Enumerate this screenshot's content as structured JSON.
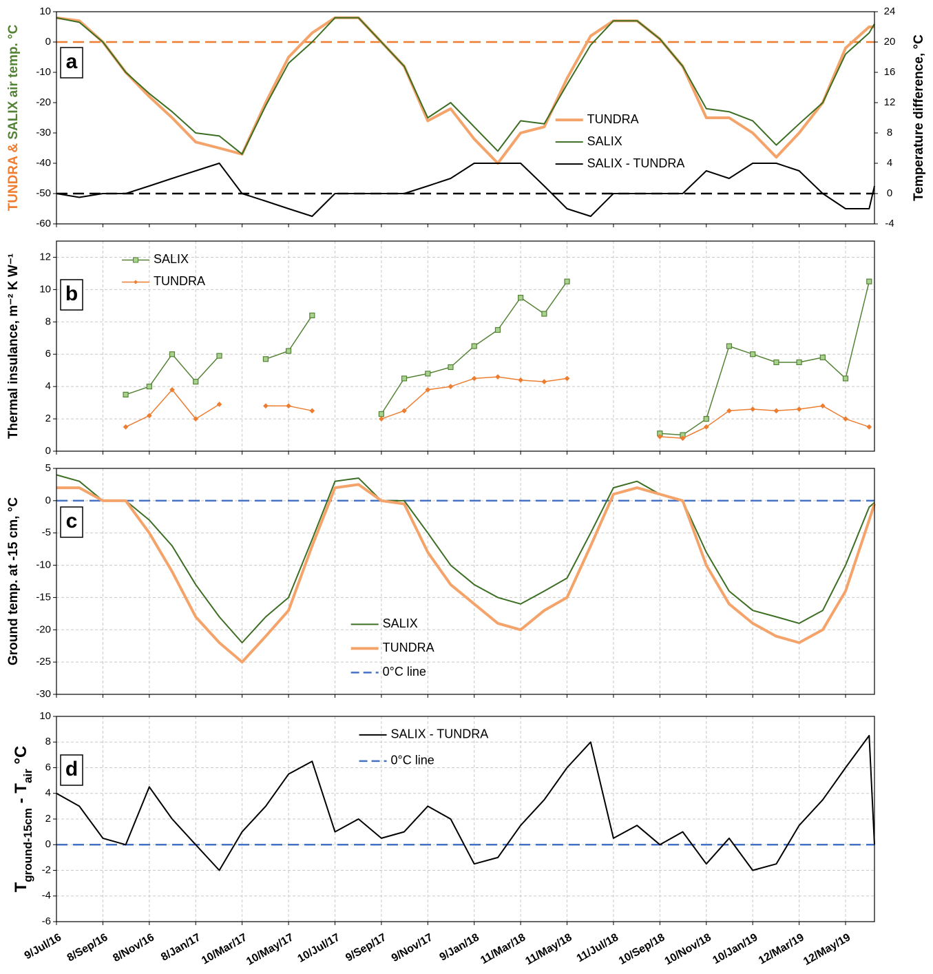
{
  "chart_data": [
    {
      "type": "line",
      "panel_label": "a",
      "ylabel_parts": [
        {
          "text": "TUNDRA &",
          "color": "#ed7d31"
        },
        {
          "text": " SALIX air temp. °C",
          "color": "#548235"
        }
      ],
      "y2label": "Temperature difference,  °C",
      "x": [
        "2016-07-09",
        "2016-08-08",
        "2016-09-08",
        "2016-10-08",
        "2016-11-08",
        "2016-12-08",
        "2017-01-08",
        "2017-02-08",
        "2017-03-10",
        "2017-04-10",
        "2017-05-10",
        "2017-06-10",
        "2017-07-10",
        "2017-08-10",
        "2017-09-09",
        "2017-10-09",
        "2017-11-09",
        "2017-12-09",
        "2018-01-09",
        "2018-02-09",
        "2018-03-11",
        "2018-04-11",
        "2018-05-11",
        "2018-06-11",
        "2018-07-11",
        "2018-08-11",
        "2018-09-10",
        "2018-10-10",
        "2018-11-10",
        "2018-12-10",
        "2019-01-10",
        "2019-02-10",
        "2019-03-12",
        "2019-04-12",
        "2019-05-12",
        "2019-06-12",
        "2019-06-19"
      ],
      "xlim": [
        "2016-07-09",
        "2019-06-19"
      ],
      "ylim": [
        -60,
        10
      ],
      "yticks": [
        -60,
        -50,
        -40,
        -30,
        -20,
        -10,
        0,
        10
      ],
      "y2lim": [
        -4,
        24
      ],
      "y2ticks": [
        -4,
        0,
        4,
        8,
        12,
        16,
        20,
        24
      ],
      "grid": false,
      "legend": "center right",
      "reference_lines": [
        {
          "value": 0,
          "color": "#ed7d31"
        },
        {
          "value": 0,
          "axis": "y2",
          "color": "#000000"
        }
      ],
      "series": [
        {
          "name": "TUNDRA",
          "color": "#f4a46a",
          "linewidth": 4,
          "values": [
            8,
            7,
            0,
            -10,
            -18,
            -25,
            -33,
            -35,
            -37,
            -20,
            -5,
            3,
            8,
            8,
            0,
            -8,
            -26,
            -22,
            -32,
            -40,
            -30,
            -28,
            -12,
            2,
            7,
            7,
            1,
            -8,
            -25,
            -25,
            -30,
            -38,
            -30,
            -20,
            -2,
            5,
            5
          ]
        },
        {
          "name": "SALIX",
          "color": "#3b6e22",
          "linewidth": 2,
          "values": [
            8,
            6.5,
            0,
            -10,
            -17,
            -23,
            -30,
            -31,
            -37,
            -21,
            -7,
            0,
            8,
            8,
            0,
            -8,
            -25,
            -20,
            -28,
            -36,
            -26,
            -27,
            -14,
            -1,
            7,
            7,
            1,
            -8,
            -22,
            -23,
            -26,
            -34,
            -27,
            -20,
            -4,
            3,
            6
          ]
        },
        {
          "name": "SALIX - TUNDRA",
          "color": "#000000",
          "linewidth": 2,
          "axis": "y2",
          "values": [
            0,
            -0.5,
            0,
            0,
            1,
            2,
            3,
            4,
            0,
            -1,
            -2,
            -3,
            0,
            0,
            0,
            0,
            1,
            2,
            4,
            4,
            4,
            1,
            -2,
            -3,
            0,
            0,
            0,
            0,
            3,
            2,
            4,
            4,
            3,
            0,
            -2,
            -2,
            1
          ]
        }
      ]
    },
    {
      "type": "line",
      "panel_label": "b",
      "ylabel": "Thermal insulance, m⁻² K W⁻¹",
      "x": [
        "2016-07-09",
        "2016-08-08",
        "2016-09-08",
        "2016-10-08",
        "2016-11-08",
        "2016-12-08",
        "2017-01-08",
        "2017-02-08",
        "2017-03-10",
        "2017-04-10",
        "2017-05-10",
        "2017-06-10",
        "2017-07-10",
        "2017-08-10",
        "2017-09-09",
        "2017-10-09",
        "2017-11-09",
        "2017-12-09",
        "2018-01-09",
        "2018-02-09",
        "2018-03-11",
        "2018-04-11",
        "2018-05-11",
        "2018-06-11",
        "2018-07-11",
        "2018-08-11",
        "2018-09-10",
        "2018-10-10",
        "2018-11-10",
        "2018-12-10",
        "2019-01-10",
        "2019-02-10",
        "2019-03-12",
        "2019-04-12",
        "2019-05-12",
        "2019-06-12",
        "2019-06-19"
      ],
      "xlim": [
        "2016-07-09",
        "2019-06-19"
      ],
      "ylim": [
        0,
        13
      ],
      "yticks": [
        0,
        2,
        4,
        6,
        8,
        10,
        12
      ],
      "grid": true,
      "legend": "upper left",
      "series": [
        {
          "name": "SALIX",
          "color": "#548235",
          "linewidth": 1.5,
          "marker": "square",
          "values": [
            null,
            null,
            null,
            3.5,
            4,
            6,
            4.3,
            5.9,
            null,
            5.7,
            6.2,
            8.4,
            null,
            null,
            2.3,
            4.5,
            4.8,
            5.2,
            6.5,
            7.5,
            9.5,
            8.5,
            10.5,
            null,
            null,
            null,
            1.1,
            1.0,
            2.0,
            6.5,
            6.0,
            5.5,
            5.5,
            5.8,
            4.5,
            10.5,
            null
          ]
        },
        {
          "name": "TUNDRA",
          "color": "#ed7d31",
          "linewidth": 1.5,
          "marker": "diamond",
          "values": [
            null,
            null,
            null,
            1.5,
            2.2,
            3.8,
            2.0,
            2.9,
            null,
            2.8,
            2.8,
            2.5,
            null,
            null,
            2.0,
            2.5,
            3.8,
            4.0,
            4.5,
            4.6,
            4.4,
            4.3,
            4.5,
            null,
            null,
            null,
            0.9,
            0.8,
            1.5,
            2.5,
            2.6,
            2.5,
            2.6,
            2.8,
            2.0,
            1.5,
            null
          ]
        }
      ]
    },
    {
      "type": "line",
      "panel_label": "c",
      "ylabel": "Ground temp. at -15 cm,  °C",
      "x": [
        "2016-07-09",
        "2016-08-08",
        "2016-09-08",
        "2016-10-08",
        "2016-11-08",
        "2016-12-08",
        "2017-01-08",
        "2017-02-08",
        "2017-03-10",
        "2017-04-10",
        "2017-05-10",
        "2017-06-10",
        "2017-07-10",
        "2017-08-10",
        "2017-09-09",
        "2017-10-09",
        "2017-11-09",
        "2017-12-09",
        "2018-01-09",
        "2018-02-09",
        "2018-03-11",
        "2018-04-11",
        "2018-05-11",
        "2018-06-11",
        "2018-07-11",
        "2018-08-11",
        "2018-09-10",
        "2018-10-10",
        "2018-11-10",
        "2018-12-10",
        "2019-01-10",
        "2019-02-10",
        "2019-03-12",
        "2019-04-12",
        "2019-05-12",
        "2019-06-12",
        "2019-06-19"
      ],
      "xlim": [
        "2016-07-09",
        "2019-06-19"
      ],
      "ylim": [
        -30,
        5
      ],
      "yticks": [
        -30,
        -25,
        -20,
        -15,
        -10,
        -5,
        0,
        5
      ],
      "grid": true,
      "legend": "lower center",
      "series": [
        {
          "name": "SALIX",
          "color": "#3b6e22",
          "linewidth": 2,
          "values": [
            4,
            3,
            0,
            0,
            -3,
            -7,
            -13,
            -18,
            -22,
            -18,
            -15,
            -6,
            3,
            3.5,
            0,
            0,
            -5,
            -10,
            -13,
            -15,
            -16,
            -14,
            -12,
            -5,
            2,
            3,
            1,
            0,
            -8,
            -14,
            -17,
            -18,
            -19,
            -17,
            -10,
            -1,
            -0.3
          ]
        },
        {
          "name": "TUNDRA",
          "color": "#f4a46a",
          "linewidth": 4,
          "values": [
            2,
            2,
            0,
            0,
            -5,
            -11,
            -18,
            -22,
            -25,
            -21,
            -17,
            -7,
            2,
            2.5,
            0,
            -0.5,
            -8,
            -13,
            -16,
            -19,
            -20,
            -17,
            -15,
            -7,
            1,
            2,
            1,
            0,
            -10,
            -16,
            -19,
            -21,
            -22,
            -20,
            -14,
            -3,
            -0.5
          ]
        }
      ],
      "reference_lines": [
        {
          "name": "0°C line",
          "value": 0,
          "color": "#4472c4"
        }
      ]
    },
    {
      "type": "line",
      "panel_label": "d",
      "ylabel_parts": [
        {
          "text": "T",
          "color": "#000000"
        },
        {
          "text": "ground-15cm",
          "color": "#000000",
          "sub": true
        },
        {
          "text": " - T",
          "color": "#000000"
        },
        {
          "text": "air",
          "color": "#000000",
          "sub": true
        },
        {
          "text": "   °C",
          "color": "#000000"
        }
      ],
      "x": [
        "2016-07-09",
        "2016-08-08",
        "2016-09-08",
        "2016-10-08",
        "2016-11-08",
        "2016-12-08",
        "2017-01-08",
        "2017-02-08",
        "2017-03-10",
        "2017-04-10",
        "2017-05-10",
        "2017-06-10",
        "2017-07-10",
        "2017-08-10",
        "2017-09-09",
        "2017-10-09",
        "2017-11-09",
        "2017-12-09",
        "2018-01-09",
        "2018-02-09",
        "2018-03-11",
        "2018-04-11",
        "2018-05-11",
        "2018-06-11",
        "2018-07-11",
        "2018-08-11",
        "2018-09-10",
        "2018-10-10",
        "2018-11-10",
        "2018-12-10",
        "2019-01-10",
        "2019-02-10",
        "2019-03-12",
        "2019-04-12",
        "2019-05-12",
        "2019-06-12",
        "2019-06-19"
      ],
      "xlim": [
        "2016-07-09",
        "2019-06-19"
      ],
      "xticks": [
        {
          "value": "2016-07-09",
          "label": "9/Jul/16"
        },
        {
          "value": "2016-09-08",
          "label": "8/Sep/16"
        },
        {
          "value": "2016-11-08",
          "label": "8/Nov/16"
        },
        {
          "value": "2017-01-08",
          "label": "8/Jan/17"
        },
        {
          "value": "2017-03-10",
          "label": "10/Mar/17"
        },
        {
          "value": "2017-05-10",
          "label": "10/May/17"
        },
        {
          "value": "2017-07-10",
          "label": "10/Jul/17"
        },
        {
          "value": "2017-09-09",
          "label": "9/Sep/17"
        },
        {
          "value": "2017-11-09",
          "label": "9/Nov/17"
        },
        {
          "value": "2018-01-09",
          "label": "9/Jan/18"
        },
        {
          "value": "2018-03-11",
          "label": "11/Mar/18"
        },
        {
          "value": "2018-05-11",
          "label": "11/May/18"
        },
        {
          "value": "2018-07-11",
          "label": "11/Jul/18"
        },
        {
          "value": "2018-09-10",
          "label": "10/Sep/18"
        },
        {
          "value": "2018-11-10",
          "label": "10/Nov/18"
        },
        {
          "value": "2019-01-10",
          "label": "10/Jan/19"
        },
        {
          "value": "2019-03-12",
          "label": "12/Mar/19"
        },
        {
          "value": "2019-05-12",
          "label": "12/May/19"
        }
      ],
      "ylim": [
        -6,
        10
      ],
      "yticks": [
        -6,
        -4,
        -2,
        0,
        2,
        4,
        6,
        8,
        10
      ],
      "grid": true,
      "legend": "upper center",
      "series": [
        {
          "name": "SALIX - TUNDRA",
          "color": "#000000",
          "linewidth": 2,
          "values": [
            4,
            3,
            0.5,
            0,
            4.5,
            2,
            0,
            -2,
            1,
            3,
            5.5,
            6.5,
            1,
            2,
            0.5,
            1,
            3,
            2,
            -1.5,
            -1,
            1.5,
            3.5,
            6,
            8,
            0.5,
            1.5,
            0,
            1,
            -1.5,
            0.5,
            -2,
            -1.5,
            1.5,
            3.5,
            6,
            8.5,
            0
          ]
        }
      ],
      "reference_lines": [
        {
          "name": "0°C line",
          "value": 0,
          "color": "#4472c4"
        }
      ]
    }
  ]
}
